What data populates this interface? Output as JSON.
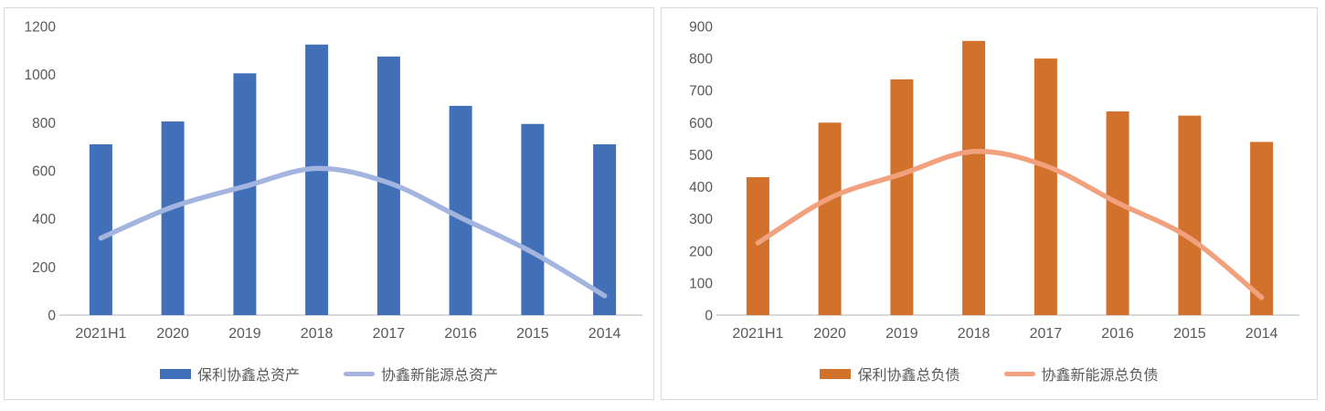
{
  "axis": {
    "text_color": "#595959",
    "line_color": "#d9d9d9",
    "background": "#ffffff"
  },
  "chart_data": [
    {
      "type": "bar",
      "subtype": "combo-bar-line",
      "categories": [
        "2021H1",
        "2020",
        "2019",
        "2018",
        "2017",
        "2016",
        "2015",
        "2014"
      ],
      "series": [
        {
          "name": "保利协鑫总资产",
          "render": "bar",
          "color": "#4270b8",
          "values": [
            710,
            805,
            1005,
            1125,
            1075,
            870,
            795,
            710
          ]
        },
        {
          "name": "协鑫新能源总资产",
          "render": "line",
          "color": "#a3b4df",
          "values": [
            320,
            450,
            535,
            610,
            550,
            405,
            260,
            80
          ]
        }
      ],
      "title": "",
      "xlabel": "",
      "ylabel": "",
      "ylim": [
        0,
        1200
      ],
      "ystep": 200,
      "grid": false,
      "legend_position": "bottom"
    },
    {
      "type": "bar",
      "subtype": "combo-bar-line",
      "categories": [
        "2021H1",
        "2020",
        "2019",
        "2018",
        "2017",
        "2016",
        "2015",
        "2014"
      ],
      "series": [
        {
          "name": "保利协鑫总负债",
          "render": "bar",
          "color": "#d2712c",
          "values": [
            430,
            600,
            735,
            855,
            800,
            635,
            622,
            540
          ]
        },
        {
          "name": "协鑫新能源总负债",
          "render": "line",
          "color": "#f2a17e",
          "values": [
            225,
            365,
            440,
            510,
            465,
            350,
            240,
            55
          ]
        }
      ],
      "title": "",
      "xlabel": "",
      "ylabel": "",
      "ylim": [
        0,
        900
      ],
      "ystep": 100,
      "grid": false,
      "legend_position": "bottom"
    }
  ]
}
